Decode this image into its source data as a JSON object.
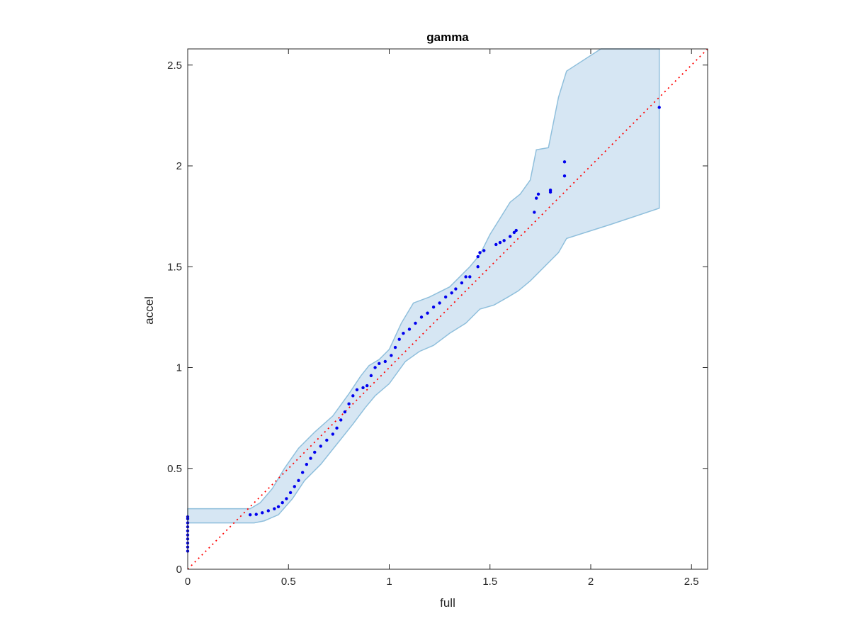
{
  "chart_data": {
    "type": "scatter",
    "title": "gamma",
    "xlabel": "full",
    "ylabel": "accel",
    "xlim": [
      0,
      2.58
    ],
    "ylim": [
      0,
      2.58
    ],
    "x_ticks": [
      0,
      0.5,
      1,
      1.5,
      2,
      2.5
    ],
    "x_tick_labels": [
      "0",
      "0.5",
      "1",
      "1.5",
      "2",
      "2.5"
    ],
    "y_ticks": [
      0,
      0.5,
      1,
      1.5,
      2,
      2.5
    ],
    "y_tick_labels": [
      "0",
      "0.5",
      "1",
      "1.5",
      "2",
      "2.5"
    ],
    "grid": false,
    "colors": {
      "points": "#0000ee",
      "reference": "#ff0000",
      "band_fill": "#d6e6f3",
      "band_edge": "#8fbfdc",
      "axis": "#262626"
    },
    "reference_line": {
      "style": "dotted",
      "from": [
        0,
        0
      ],
      "to": [
        2.58,
        2.58
      ]
    },
    "band": {
      "upper": [
        [
          0.0,
          0.3
        ],
        [
          0.31,
          0.3
        ],
        [
          0.36,
          0.33
        ],
        [
          0.42,
          0.4
        ],
        [
          0.48,
          0.5
        ],
        [
          0.55,
          0.6
        ],
        [
          0.63,
          0.68
        ],
        [
          0.72,
          0.76
        ],
        [
          0.8,
          0.87
        ],
        [
          0.86,
          0.96
        ],
        [
          0.9,
          1.01
        ],
        [
          0.95,
          1.04
        ],
        [
          1.0,
          1.09
        ],
        [
          1.06,
          1.22
        ],
        [
          1.12,
          1.32
        ],
        [
          1.2,
          1.35
        ],
        [
          1.3,
          1.4
        ],
        [
          1.4,
          1.5
        ],
        [
          1.45,
          1.56
        ],
        [
          1.5,
          1.66
        ],
        [
          1.55,
          1.74
        ],
        [
          1.6,
          1.82
        ],
        [
          1.65,
          1.86
        ],
        [
          1.7,
          1.93
        ],
        [
          1.73,
          2.08
        ],
        [
          1.79,
          2.09
        ],
        [
          1.84,
          2.34
        ],
        [
          1.88,
          2.47
        ],
        [
          2.05,
          2.58
        ],
        [
          2.34,
          2.58
        ]
      ],
      "lower": [
        [
          0.0,
          0.23
        ],
        [
          0.33,
          0.23
        ],
        [
          0.38,
          0.24
        ],
        [
          0.45,
          0.27
        ],
        [
          0.52,
          0.35
        ],
        [
          0.58,
          0.44
        ],
        [
          0.66,
          0.52
        ],
        [
          0.74,
          0.62
        ],
        [
          0.82,
          0.72
        ],
        [
          0.88,
          0.8
        ],
        [
          0.93,
          0.86
        ],
        [
          1.0,
          0.92
        ],
        [
          1.08,
          1.03
        ],
        [
          1.15,
          1.08
        ],
        [
          1.22,
          1.11
        ],
        [
          1.3,
          1.17
        ],
        [
          1.38,
          1.22
        ],
        [
          1.45,
          1.29
        ],
        [
          1.52,
          1.31
        ],
        [
          1.59,
          1.35
        ],
        [
          1.64,
          1.38
        ],
        [
          1.7,
          1.43
        ],
        [
          1.74,
          1.47
        ],
        [
          1.84,
          1.57
        ],
        [
          1.88,
          1.64
        ],
        [
          2.1,
          1.71
        ],
        [
          2.34,
          1.79
        ]
      ]
    },
    "points": [
      [
        0.0,
        0.09
      ],
      [
        0.0,
        0.11
      ],
      [
        0.0,
        0.13
      ],
      [
        0.0,
        0.15
      ],
      [
        0.0,
        0.17
      ],
      [
        0.0,
        0.19
      ],
      [
        0.0,
        0.21
      ],
      [
        0.0,
        0.23
      ],
      [
        0.0,
        0.25
      ],
      [
        0.0,
        0.26
      ],
      [
        0.31,
        0.27
      ],
      [
        0.34,
        0.272
      ],
      [
        0.37,
        0.28
      ],
      [
        0.4,
        0.29
      ],
      [
        0.43,
        0.3
      ],
      [
        0.45,
        0.31
      ],
      [
        0.47,
        0.33
      ],
      [
        0.49,
        0.35
      ],
      [
        0.51,
        0.38
      ],
      [
        0.53,
        0.41
      ],
      [
        0.55,
        0.44
      ],
      [
        0.57,
        0.48
      ],
      [
        0.59,
        0.52
      ],
      [
        0.61,
        0.55
      ],
      [
        0.63,
        0.58
      ],
      [
        0.66,
        0.61
      ],
      [
        0.69,
        0.64
      ],
      [
        0.72,
        0.67
      ],
      [
        0.74,
        0.7
      ],
      [
        0.76,
        0.74
      ],
      [
        0.78,
        0.78
      ],
      [
        0.8,
        0.82
      ],
      [
        0.82,
        0.86
      ],
      [
        0.84,
        0.89
      ],
      [
        0.87,
        0.9
      ],
      [
        0.89,
        0.91
      ],
      [
        0.91,
        0.96
      ],
      [
        0.93,
        1.0
      ],
      [
        0.95,
        1.02
      ],
      [
        0.98,
        1.03
      ],
      [
        1.01,
        1.06
      ],
      [
        1.03,
        1.1
      ],
      [
        1.05,
        1.14
      ],
      [
        1.07,
        1.17
      ],
      [
        1.1,
        1.19
      ],
      [
        1.13,
        1.22
      ],
      [
        1.16,
        1.25
      ],
      [
        1.19,
        1.27
      ],
      [
        1.22,
        1.3
      ],
      [
        1.25,
        1.32
      ],
      [
        1.28,
        1.35
      ],
      [
        1.31,
        1.37
      ],
      [
        1.33,
        1.39
      ],
      [
        1.36,
        1.42
      ],
      [
        1.38,
        1.45
      ],
      [
        1.4,
        1.45
      ],
      [
        1.44,
        1.5
      ],
      [
        1.44,
        1.55
      ],
      [
        1.45,
        1.57
      ],
      [
        1.47,
        1.58
      ],
      [
        1.53,
        1.61
      ],
      [
        1.55,
        1.62
      ],
      [
        1.57,
        1.63
      ],
      [
        1.6,
        1.65
      ],
      [
        1.62,
        1.67
      ],
      [
        1.63,
        1.68
      ],
      [
        1.72,
        1.77
      ],
      [
        1.73,
        1.84
      ],
      [
        1.74,
        1.86
      ],
      [
        1.8,
        1.87
      ],
      [
        1.8,
        1.88
      ],
      [
        1.87,
        1.95
      ],
      [
        1.87,
        2.02
      ],
      [
        2.34,
        2.29
      ]
    ]
  }
}
